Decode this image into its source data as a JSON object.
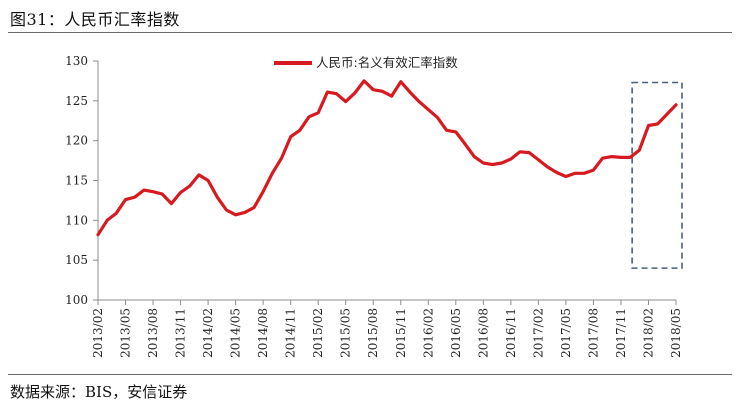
{
  "figure": {
    "title": "图31：人民币汇率指数",
    "source": "数据来源：BIS，安信证券"
  },
  "colors": {
    "series": "#d71920",
    "axis": "#8c8c8c",
    "highlight_box": "#4a5f7a"
  },
  "chart_data": {
    "type": "line",
    "title": "",
    "xlabel": "",
    "ylabel": "",
    "ylim": [
      100,
      130
    ],
    "yticks": [
      100,
      105,
      110,
      115,
      120,
      125,
      130
    ],
    "grid": false,
    "legend_position": "top",
    "x_tick_labels": [
      "2013/02",
      "2013/05",
      "2013/08",
      "2013/11",
      "2014/02",
      "2014/05",
      "2014/08",
      "2014/11",
      "2015/02",
      "2015/05",
      "2015/08",
      "2015/11",
      "2016/02",
      "2016/05",
      "2016/08",
      "2016/11",
      "2017/02",
      "2017/05",
      "2017/08",
      "2017/11",
      "2018/02",
      "2018/05"
    ],
    "series": [
      {
        "name": "人民币:名义有效汇率指数",
        "x": [
          "2013/02",
          "2013/03",
          "2013/04",
          "2013/05",
          "2013/06",
          "2013/07",
          "2013/08",
          "2013/09",
          "2013/10",
          "2013/11",
          "2013/12",
          "2014/01",
          "2014/02",
          "2014/03",
          "2014/04",
          "2014/05",
          "2014/06",
          "2014/07",
          "2014/08",
          "2014/09",
          "2014/10",
          "2014/11",
          "2014/12",
          "2015/01",
          "2015/02",
          "2015/03",
          "2015/04",
          "2015/05",
          "2015/06",
          "2015/07",
          "2015/08",
          "2015/09",
          "2015/10",
          "2015/11",
          "2015/12",
          "2016/01",
          "2016/02",
          "2016/03",
          "2016/04",
          "2016/05",
          "2016/06",
          "2016/07",
          "2016/08",
          "2016/09",
          "2016/10",
          "2016/11",
          "2016/12",
          "2017/01",
          "2017/02",
          "2017/03",
          "2017/04",
          "2017/05",
          "2017/06",
          "2017/07",
          "2017/08",
          "2017/09",
          "2017/10",
          "2017/11",
          "2017/12",
          "2018/01",
          "2018/02",
          "2018/03",
          "2018/04",
          "2018/05"
        ],
        "values": [
          108.2,
          110.0,
          110.9,
          112.6,
          112.9,
          113.8,
          113.6,
          113.3,
          112.1,
          113.5,
          114.3,
          115.7,
          115.0,
          112.9,
          111.3,
          110.7,
          111.0,
          111.6,
          113.6,
          115.9,
          117.8,
          120.5,
          121.3,
          123.0,
          123.5,
          126.1,
          125.9,
          124.9,
          126.0,
          127.5,
          126.4,
          126.2,
          125.6,
          127.4,
          126.1,
          124.9,
          123.9,
          122.9,
          121.3,
          121.1,
          119.6,
          118.0,
          117.2,
          117.0,
          117.2,
          117.7,
          118.6,
          118.5,
          117.6,
          116.7,
          116.0,
          115.5,
          115.9,
          115.9,
          116.3,
          117.8,
          118.0,
          117.9,
          117.9,
          118.8,
          121.9,
          122.1,
          123.3,
          124.5
        ]
      }
    ],
    "annotations": [
      {
        "type": "dashed-box",
        "x_from": "2017/12",
        "x_to": "2018/05",
        "y_from": 104,
        "y_to": 127.3
      }
    ]
  }
}
